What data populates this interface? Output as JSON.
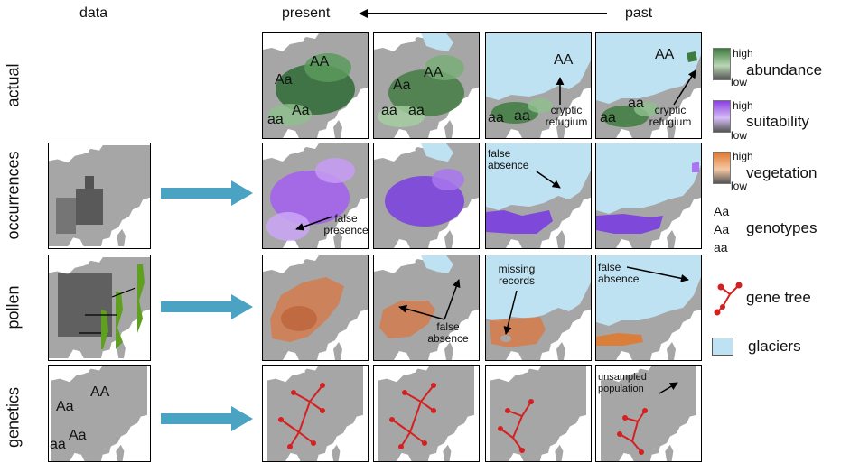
{
  "headers": {
    "data": "data",
    "present": "present",
    "past": "past"
  },
  "rows": [
    "actual",
    "occurrences",
    "pollen",
    "genetics"
  ],
  "genotypes": {
    "AA": "AA",
    "Aa": "Aa",
    "aa": "aa"
  },
  "annotations": {
    "cryptic_refugium_1": "cryptic refugium",
    "cryptic_refugium_2": "cryptic refugium",
    "false_presence": "false presence",
    "false_absence_occ": "false absence",
    "false_absence_pollen": "false absence",
    "missing_records": "missing records",
    "false_absence_past": "false absence",
    "unsampled_population": "unsampled population"
  },
  "legend": {
    "abundance": {
      "high": "high",
      "low": "low",
      "name": "abundance",
      "color": "#3e7b3f"
    },
    "suitability": {
      "high": "high",
      "low": "low",
      "name": "suitability",
      "color": "#8a3fe0"
    },
    "vegetation": {
      "high": "high",
      "low": "low",
      "name": "vegetation",
      "color": "#e07a30"
    },
    "genotypes": {
      "line1": "Aa",
      "line2": "Aa",
      "line3": "aa",
      "name": "genotypes"
    },
    "gene_tree": {
      "name": "gene tree",
      "color": "#d42020"
    },
    "glaciers": {
      "name": "glaciers",
      "color": "#bfe2f2"
    }
  },
  "colors": {
    "land": "#a6a6a6",
    "ice": "#bfe2f2",
    "arrow": "#4aa3c3",
    "tree": "#d42020",
    "pollen_bar": "#5fa020"
  }
}
